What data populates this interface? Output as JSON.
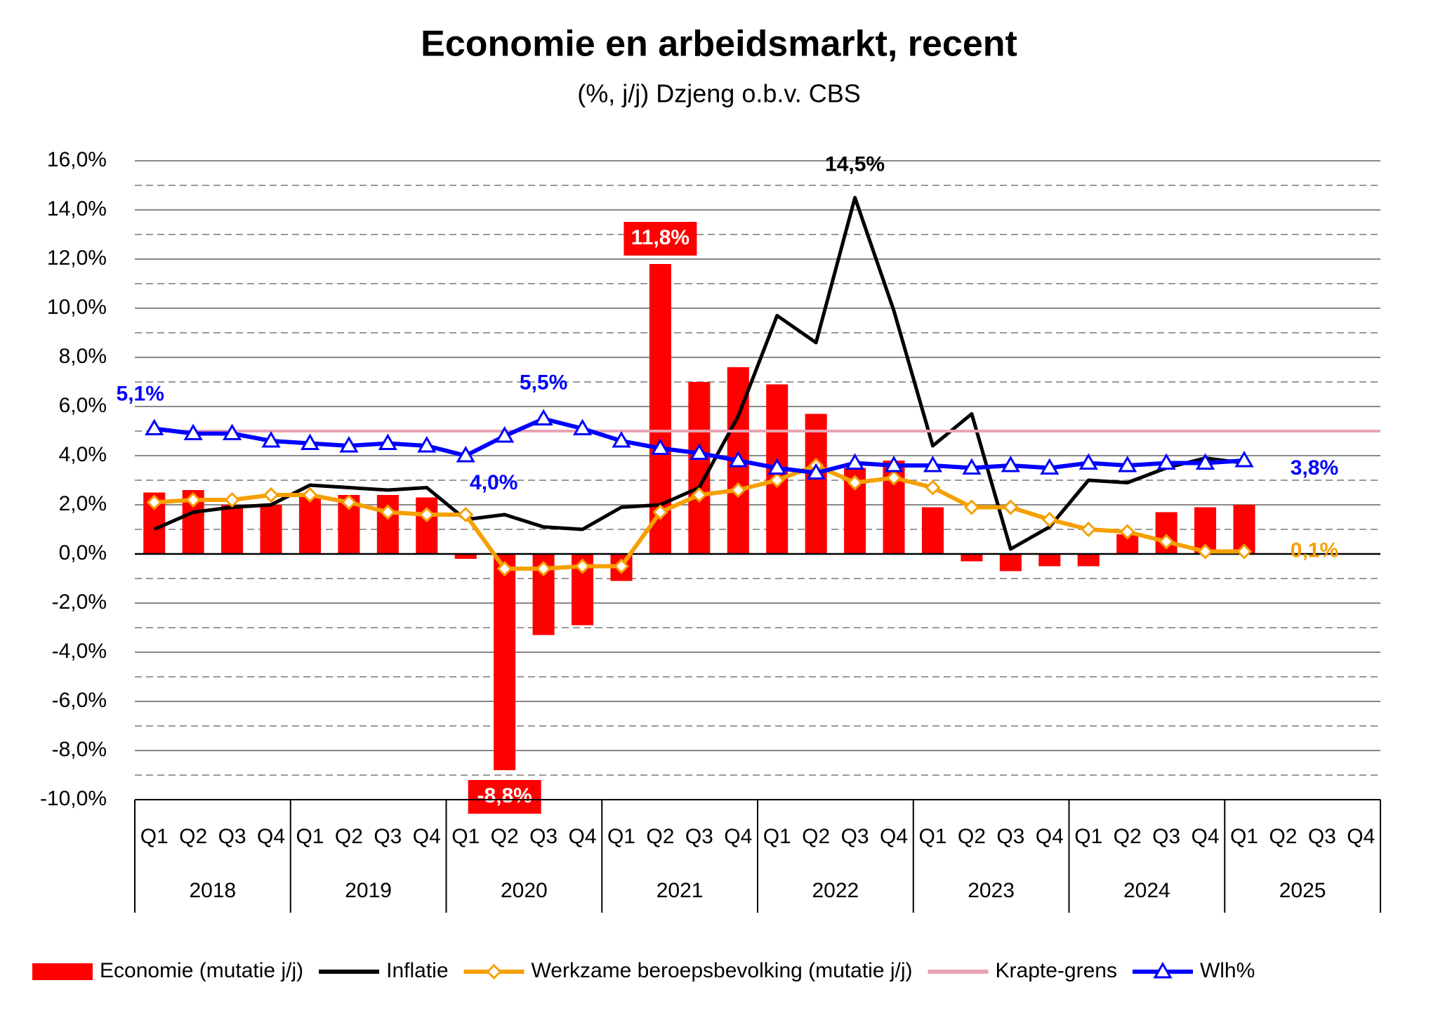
{
  "chart_data": {
    "type": "bar-line",
    "title": "Economie en arbeidsmarkt, recent",
    "subtitle": "(%, j/j) Dzjeng o.b.v. CBS",
    "categories": [
      "Q1",
      "Q2",
      "Q3",
      "Q4",
      "Q1",
      "Q2",
      "Q3",
      "Q4",
      "Q1",
      "Q2",
      "Q3",
      "Q4",
      "Q1",
      "Q2",
      "Q3",
      "Q4",
      "Q1",
      "Q2",
      "Q3",
      "Q4",
      "Q1",
      "Q2",
      "Q3",
      "Q4",
      "Q1",
      "Q2",
      "Q3",
      "Q4",
      "Q1",
      "Q2",
      "Q3",
      "Q4"
    ],
    "years": [
      "2018",
      "2019",
      "2020",
      "2021",
      "2022",
      "2023",
      "2024",
      "2025"
    ],
    "series": [
      {
        "name": "Economie (mutatie j/j)",
        "kind": "bar",
        "color": "#ff0000",
        "values": [
          2.5,
          2.6,
          2.0,
          2.0,
          2.4,
          2.4,
          2.4,
          2.3,
          -0.2,
          -8.8,
          -3.3,
          -2.9,
          -1.1,
          11.8,
          7.0,
          7.6,
          6.9,
          5.7,
          3.5,
          3.8,
          1.9,
          -0.3,
          -0.7,
          -0.5,
          -0.5,
          0.8,
          1.7,
          1.9,
          2.0,
          null,
          null,
          null
        ],
        "value_labels": [
          null,
          null,
          null,
          null,
          null,
          null,
          null,
          null,
          null,
          "-8,8%",
          null,
          null,
          null,
          "11,8%",
          null,
          null,
          null,
          null,
          null,
          null,
          null,
          null,
          null,
          null,
          null,
          null,
          null,
          null,
          null,
          null,
          null,
          null
        ]
      },
      {
        "name": "Inflatie",
        "kind": "line",
        "color": "#000000",
        "values": [
          1.0,
          1.7,
          1.9,
          2.0,
          2.8,
          2.7,
          2.6,
          2.7,
          1.4,
          1.6,
          1.1,
          1.0,
          1.9,
          2.0,
          2.7,
          5.6,
          9.7,
          8.6,
          14.5,
          9.9,
          4.4,
          5.7,
          0.2,
          1.1,
          3.0,
          2.9,
          3.5,
          3.9,
          3.7,
          null,
          null,
          null
        ],
        "value_labels": [
          null,
          null,
          null,
          null,
          null,
          null,
          null,
          null,
          null,
          null,
          null,
          null,
          null,
          null,
          null,
          null,
          null,
          null,
          "14,5%",
          null,
          null,
          null,
          null,
          null,
          null,
          null,
          null,
          null,
          null,
          null,
          null,
          null
        ]
      },
      {
        "name": "Werkzame beroepsbevolking (mutatie j/j)",
        "kind": "line",
        "marker": "diamond",
        "color": "#f5a000",
        "values": [
          2.1,
          2.2,
          2.2,
          2.4,
          2.4,
          2.1,
          1.7,
          1.6,
          1.6,
          -0.6,
          -0.6,
          -0.5,
          -0.5,
          1.7,
          2.4,
          2.6,
          3.0,
          3.6,
          2.9,
          3.1,
          2.7,
          1.9,
          1.9,
          1.4,
          1.0,
          0.9,
          0.5,
          0.1,
          0.1,
          null,
          null,
          null
        ],
        "value_labels": [
          null,
          null,
          null,
          null,
          null,
          null,
          null,
          null,
          null,
          null,
          null,
          null,
          null,
          null,
          null,
          null,
          null,
          null,
          null,
          null,
          null,
          null,
          null,
          null,
          null,
          null,
          null,
          null,
          "0,1%",
          null,
          null,
          null
        ]
      },
      {
        "name": "Krapte-grens",
        "kind": "line",
        "color": "#e8a3b3",
        "values": [
          5,
          5,
          5,
          5,
          5,
          5,
          5,
          5,
          5,
          5,
          5,
          5,
          5,
          5,
          5,
          5,
          5,
          5,
          5,
          5,
          5,
          5,
          5,
          5,
          5,
          5,
          5,
          5,
          5,
          5,
          5,
          5
        ]
      },
      {
        "name": "Wlh%",
        "kind": "line",
        "marker": "triangle",
        "color": "#0000ff",
        "values": [
          5.1,
          4.9,
          4.9,
          4.6,
          4.5,
          4.4,
          4.5,
          4.4,
          4.0,
          4.8,
          5.5,
          5.1,
          4.6,
          4.3,
          4.1,
          3.8,
          3.5,
          3.3,
          3.7,
          3.6,
          3.6,
          3.5,
          3.6,
          3.5,
          3.7,
          3.6,
          3.7,
          3.7,
          3.8,
          null,
          null,
          null
        ],
        "value_labels": [
          "5,1%",
          null,
          null,
          null,
          null,
          null,
          null,
          null,
          "4,0%",
          null,
          "5,5%",
          null,
          null,
          null,
          null,
          null,
          null,
          null,
          null,
          null,
          null,
          null,
          null,
          null,
          null,
          null,
          null,
          null,
          "3,8%",
          null,
          null,
          null
        ]
      }
    ],
    "ylim": [
      -10,
      16
    ],
    "yticks": [
      {
        "value": -10,
        "label": "-10,0%"
      },
      {
        "value": -8,
        "label": "-8,0%"
      },
      {
        "value": -6,
        "label": "-6,0%"
      },
      {
        "value": -4,
        "label": "-4,0%"
      },
      {
        "value": -2,
        "label": "-2,0%"
      },
      {
        "value": 0,
        "label": "0,0%"
      },
      {
        "value": 2,
        "label": "2,0%"
      },
      {
        "value": 4,
        "label": "4,0%"
      },
      {
        "value": 6,
        "label": "6,0%"
      },
      {
        "value": 8,
        "label": "8,0%"
      },
      {
        "value": 10,
        "label": "10,0%"
      },
      {
        "value": 12,
        "label": "12,0%"
      },
      {
        "value": 14,
        "label": "14,0%"
      },
      {
        "value": 16,
        "label": "16,0%"
      }
    ],
    "minor_yticks": [
      -9,
      -7,
      -5,
      -3,
      -1,
      1,
      3,
      5,
      7,
      9,
      11,
      13,
      15
    ],
    "grid": true,
    "legend": "bottom"
  }
}
